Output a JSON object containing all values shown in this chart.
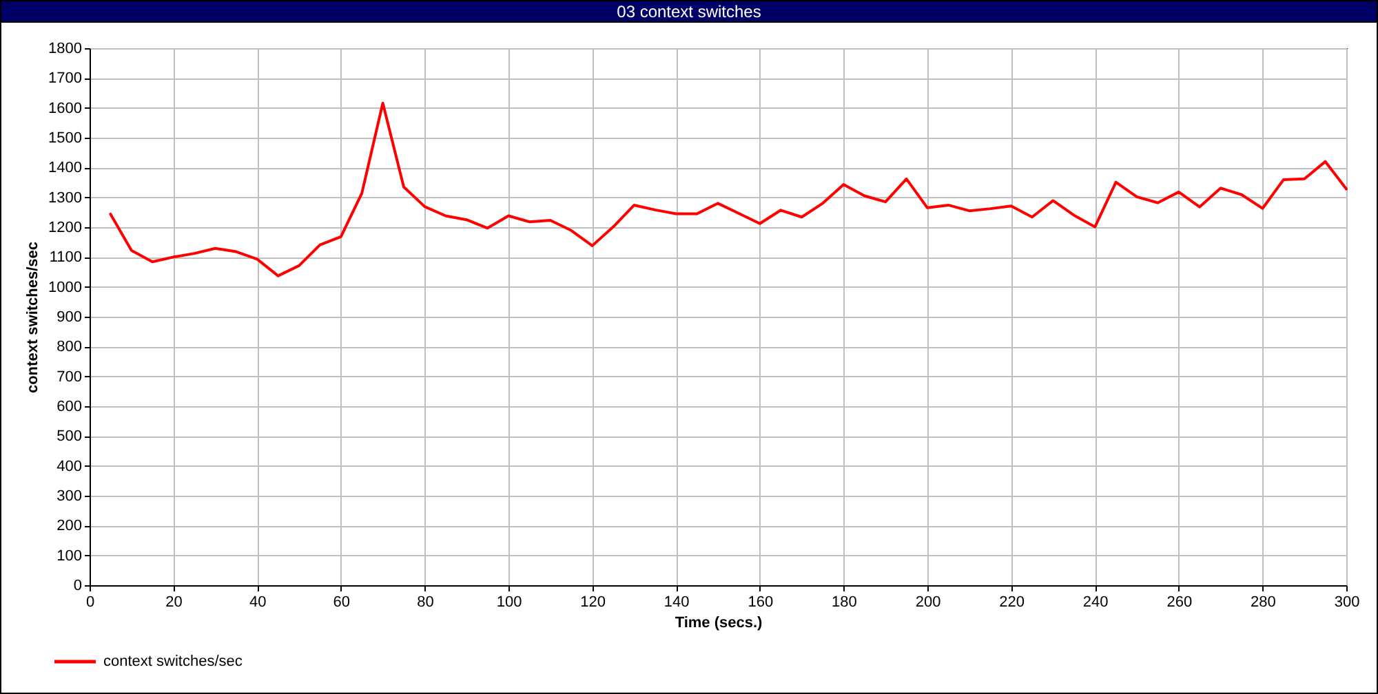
{
  "chart_data": {
    "type": "line",
    "title": "03 context switches",
    "xlabel": "Time (secs.)",
    "ylabel": "context switches/sec",
    "x": [
      5,
      10,
      15,
      20,
      25,
      30,
      35,
      40,
      45,
      50,
      55,
      60,
      65,
      70,
      75,
      80,
      85,
      90,
      95,
      100,
      105,
      110,
      115,
      120,
      125,
      130,
      135,
      140,
      145,
      150,
      155,
      160,
      165,
      170,
      175,
      180,
      185,
      190,
      195,
      200,
      205,
      210,
      215,
      220,
      225,
      230,
      235,
      240,
      245,
      250,
      255,
      260,
      265,
      270,
      275,
      280,
      285,
      290,
      295,
      300
    ],
    "series": [
      {
        "name": "context switches/sec",
        "color": "#ff0000",
        "values": [
          1244,
          1122,
          1084,
          1100,
          1112,
          1129,
          1118,
          1093,
          1037,
          1071,
          1141,
          1168,
          1314,
          1616,
          1335,
          1269,
          1238,
          1225,
          1197,
          1238,
          1218,
          1223,
          1189,
          1138,
          1201,
          1274,
          1258,
          1245,
          1245,
          1280,
          1246,
          1212,
          1257,
          1234,
          1280,
          1343,
          1305,
          1285,
          1362,
          1265,
          1274,
          1255,
          1262,
          1271,
          1234,
          1289,
          1240,
          1201,
          1351,
          1302,
          1282,
          1318,
          1268,
          1331,
          1309,
          1263,
          1359,
          1362,
          1420,
          1328
        ]
      }
    ],
    "xlim": [
      0,
      300
    ],
    "xticks": [
      0,
      20,
      40,
      60,
      80,
      100,
      120,
      140,
      160,
      180,
      200,
      220,
      240,
      260,
      280,
      300
    ],
    "ylim": [
      0,
      1800
    ],
    "yticks": [
      0,
      100,
      200,
      300,
      400,
      500,
      600,
      700,
      800,
      900,
      1000,
      1100,
      1200,
      1300,
      1400,
      1500,
      1600,
      1700,
      1800
    ],
    "grid": true,
    "legend": "bottom left",
    "line_style": "solid"
  }
}
